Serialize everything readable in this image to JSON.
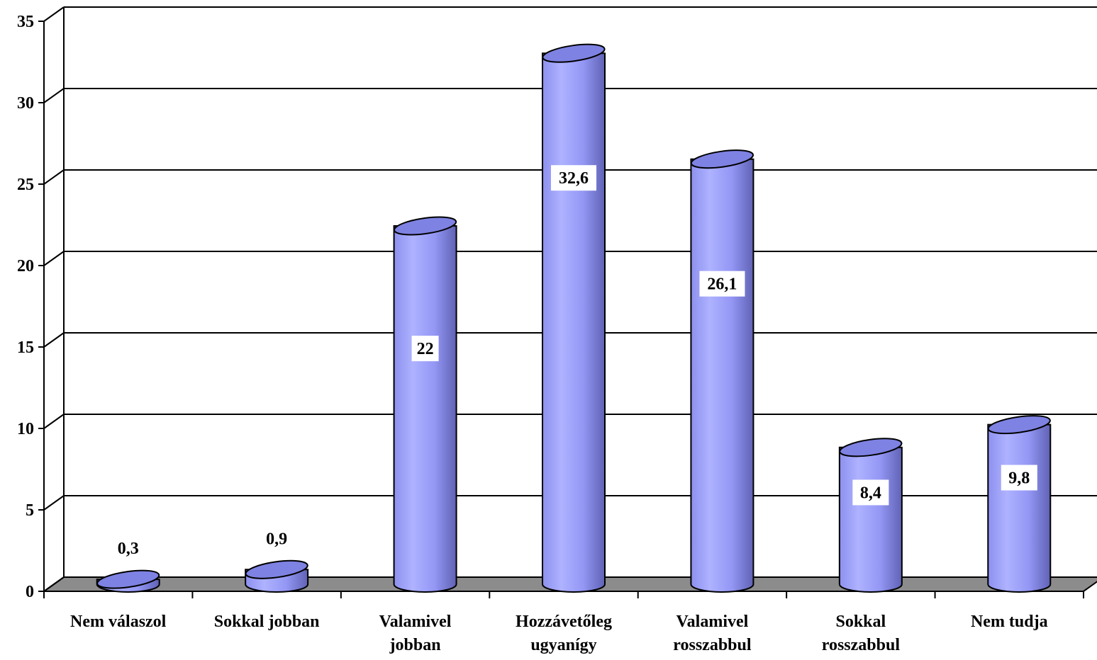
{
  "chart_data": {
    "type": "bar",
    "bar_style": "3d-cylinder",
    "categories": [
      [
        "Nem válaszol"
      ],
      [
        "Sokkal jobban"
      ],
      [
        "Valamivel",
        "jobban"
      ],
      [
        "Hozzávetőleg",
        "ugyanígy"
      ],
      [
        "Valamivel",
        "rosszabbul"
      ],
      [
        "Sokkal",
        "rosszabbul"
      ],
      [
        "Nem tudja"
      ]
    ],
    "values": [
      0.3,
      0.9,
      22,
      32.6,
      26.1,
      8.4,
      9.8
    ],
    "value_labels": [
      "0,3",
      "0,9",
      "22",
      "32,6",
      "26,1",
      "8,4",
      "9,8"
    ],
    "y_ticks": [
      "0",
      "5",
      "10",
      "15",
      "20",
      "25",
      "30",
      "35"
    ],
    "ylim": [
      0,
      35
    ],
    "grid": true,
    "legend": "none",
    "title": "",
    "xlabel": "",
    "ylabel": "",
    "colors": {
      "bar_light": "#aeb2ff",
      "bar_mid": "#8d90ee",
      "bar_dark": "#5f62b4",
      "bar_top": "#7e82e2",
      "floor": "#8c8c8c",
      "grid": "#000000"
    }
  }
}
